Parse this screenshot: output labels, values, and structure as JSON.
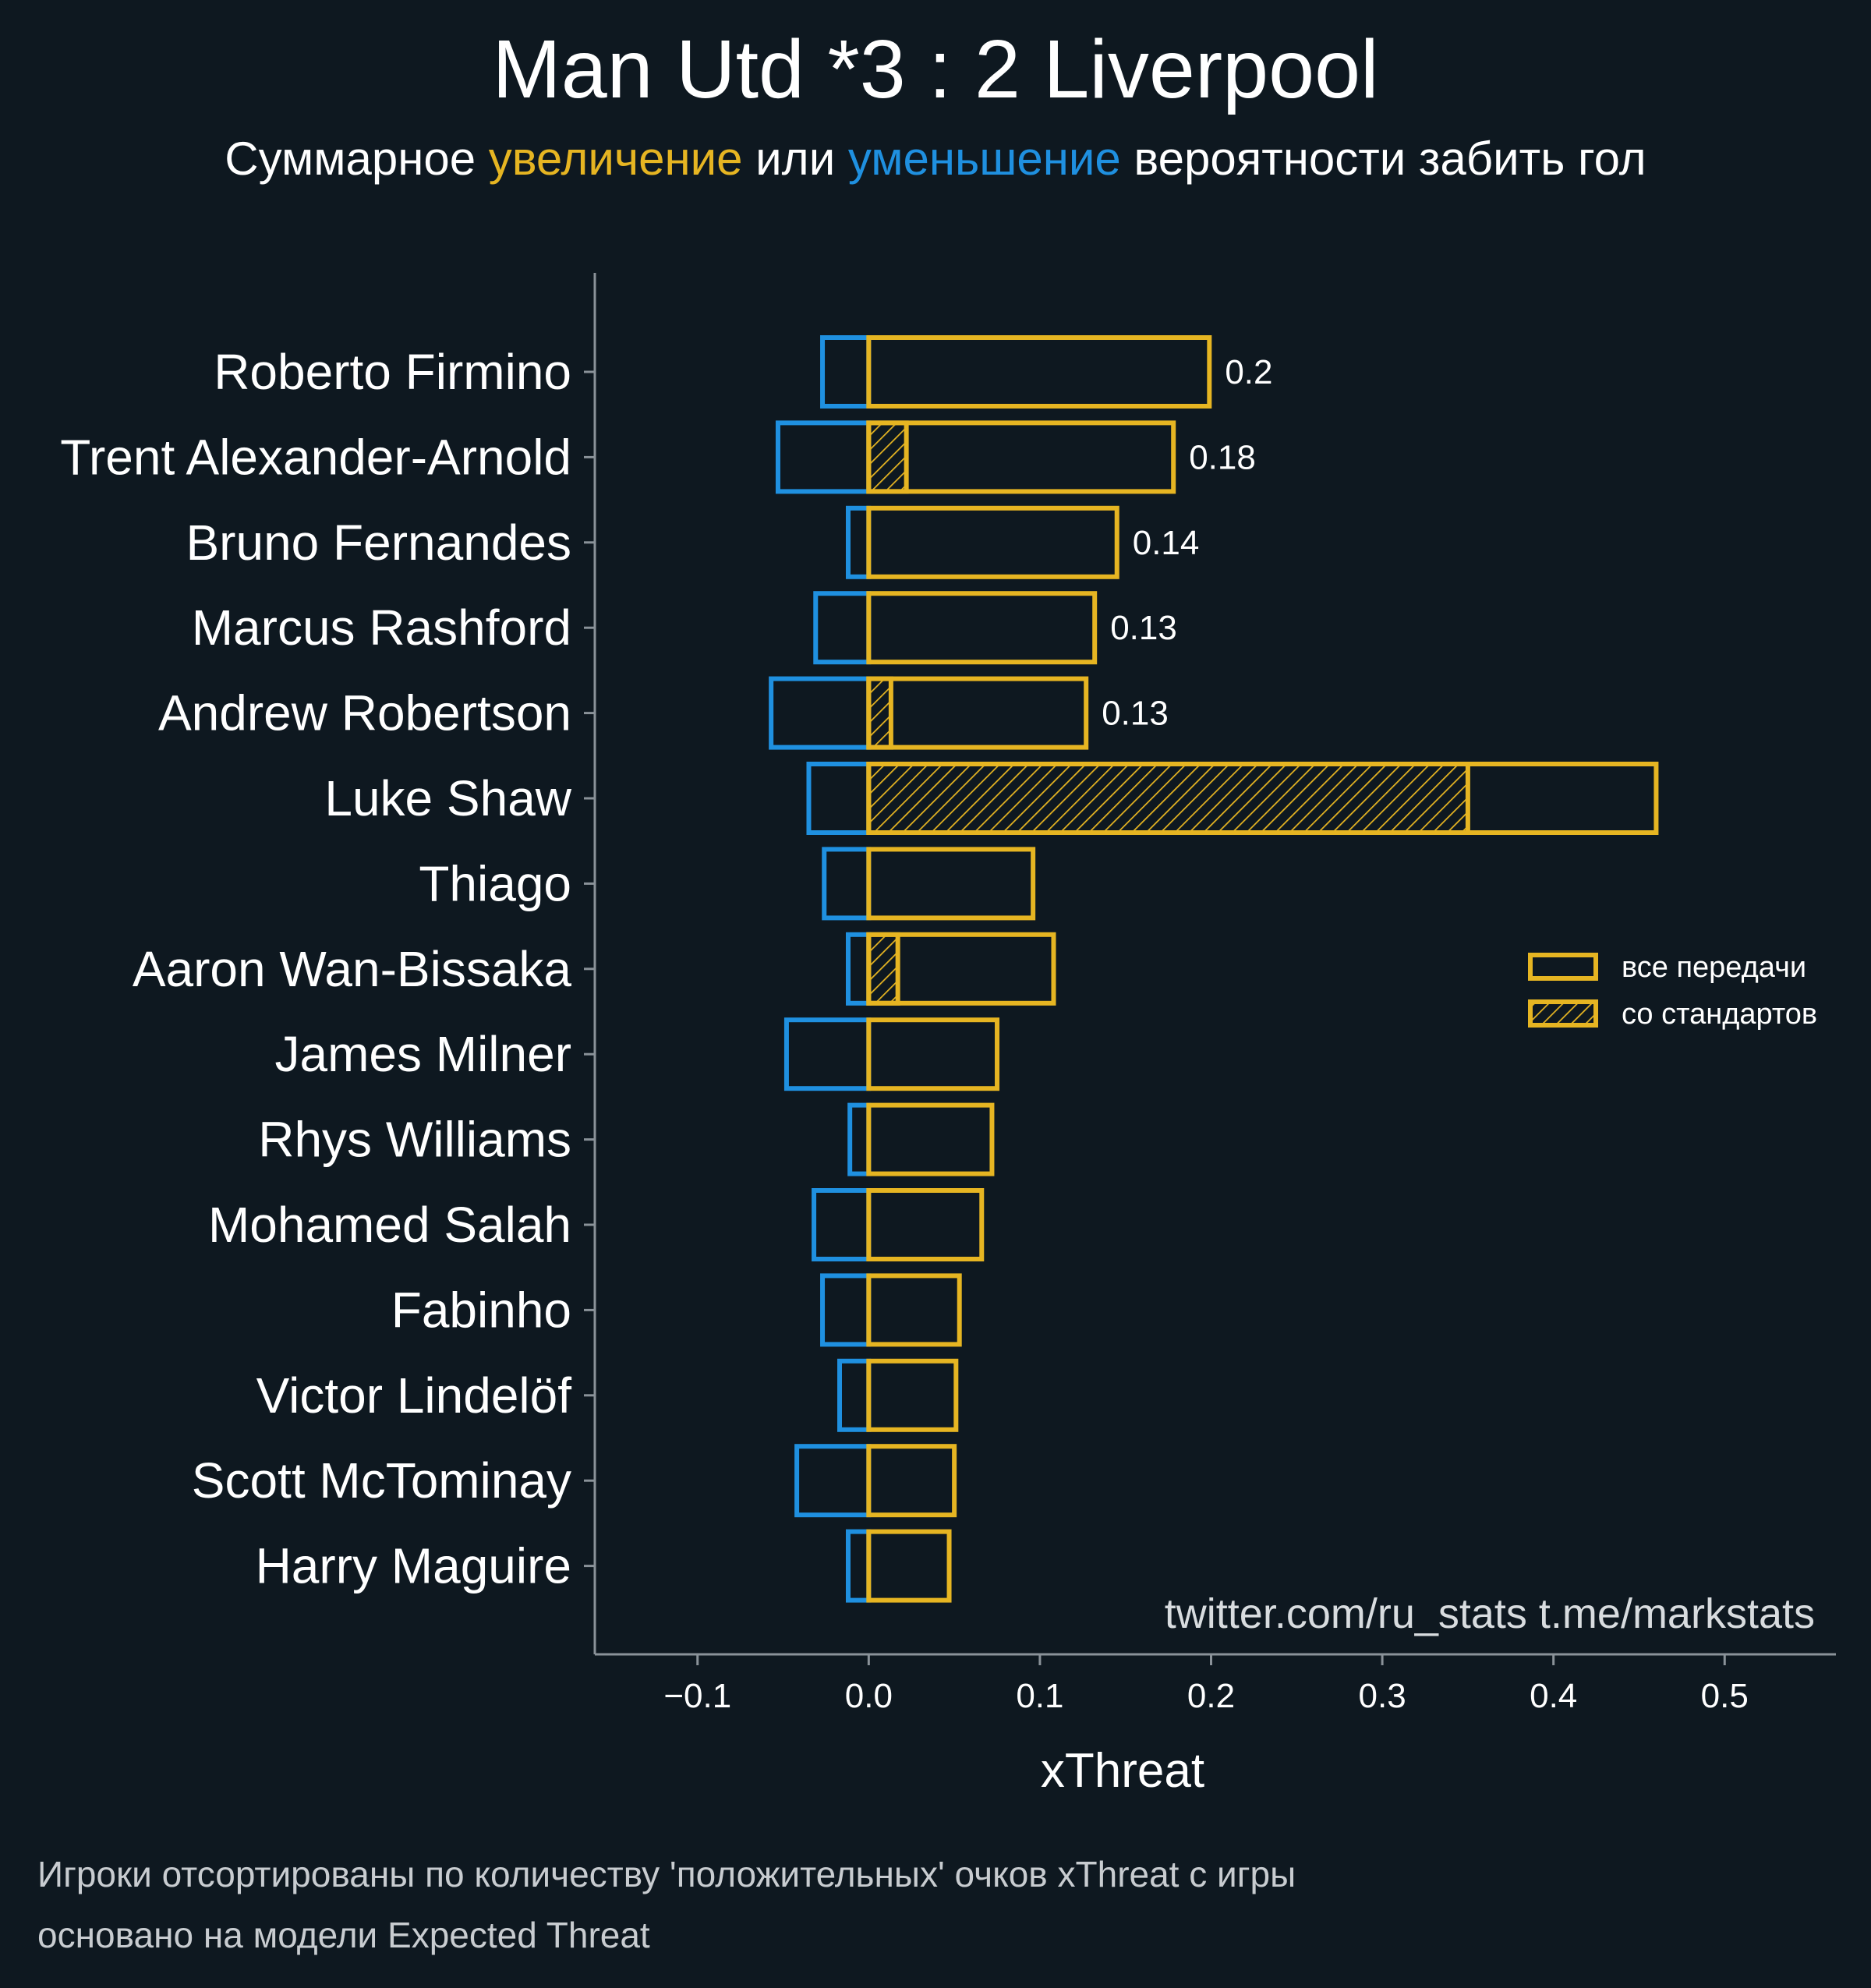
{
  "colors": {
    "background": "#0e1820",
    "positive": "#e6b522",
    "negative": "#1f90e0",
    "text": "#ffffff",
    "footer_text": "#c8ccd0",
    "axis": "#8a9299"
  },
  "header": {
    "title": "Man Utd *3 : 2 Liverpool",
    "subtitle_parts": [
      {
        "text": "Суммарное ",
        "color": "#ffffff"
      },
      {
        "text": "увеличение",
        "color": "#e6b522"
      },
      {
        "text": " или ",
        "color": "#ffffff"
      },
      {
        "text": "уменьшение",
        "color": "#1f90e0"
      },
      {
        "text": " вероятности забить гол",
        "color": "#ffffff"
      }
    ]
  },
  "legend": {
    "all_passes": "все передачи",
    "set_pieces": "со стандартов",
    "position": "right"
  },
  "watermark": "twitter.com/ru_stats  t.me/markstats",
  "footer": {
    "line1": "Игроки отсортированы по количеству 'положительных' очков xThreat с игры",
    "line2": "основано на модели Expected Threat"
  },
  "chart_data": {
    "type": "bar",
    "orientation": "horizontal",
    "xlabel": "xThreat",
    "xlim": [
      -0.16,
      0.565
    ],
    "xticks": [
      -0.1,
      0.0,
      0.1,
      0.2,
      0.3,
      0.4,
      0.5
    ],
    "xtick_labels": [
      "−0.1",
      "0.0",
      "0.1",
      "0.2",
      "0.3",
      "0.4",
      "0.5"
    ],
    "categories": [
      "Roberto Firmino",
      "Trent Alexander-Arnold",
      "Bruno Fernandes",
      "Marcus Rashford",
      "Andrew Robertson",
      "Luke Shaw",
      "Thiago",
      "Aaron Wan-Bissaka",
      "James Milner",
      "Rhys Williams",
      "Mohamed Salah",
      "Fabinho",
      "Victor Lindelöf",
      "Scott McTominay",
      "Harry Maguire"
    ],
    "series": [
      {
        "name": "все передачи",
        "values": [
          0.199,
          0.178,
          0.145,
          0.132,
          0.127,
          0.46,
          0.096,
          0.108,
          0.075,
          0.072,
          0.066,
          0.053,
          0.051,
          0.05,
          0.047
        ]
      },
      {
        "name": "со стандартов",
        "values": [
          0,
          0.022,
          0,
          0,
          0.013,
          0.35,
          0,
          0.017,
          0,
          0,
          0,
          0,
          0,
          0,
          0
        ]
      },
      {
        "values": [
          -0.027,
          -0.053,
          -0.012,
          -0.031,
          -0.057,
          -0.035,
          -0.026,
          -0.012,
          -0.048,
          -0.011,
          -0.032,
          -0.027,
          -0.017,
          -0.042,
          -0.012
        ]
      }
    ],
    "data_labels": [
      "0.2",
      "0.18",
      "0.14",
      "0.13",
      "0.13",
      "",
      "",
      "",
      "",
      "",
      "",
      "",
      "",
      "",
      ""
    ],
    "grid": false
  }
}
